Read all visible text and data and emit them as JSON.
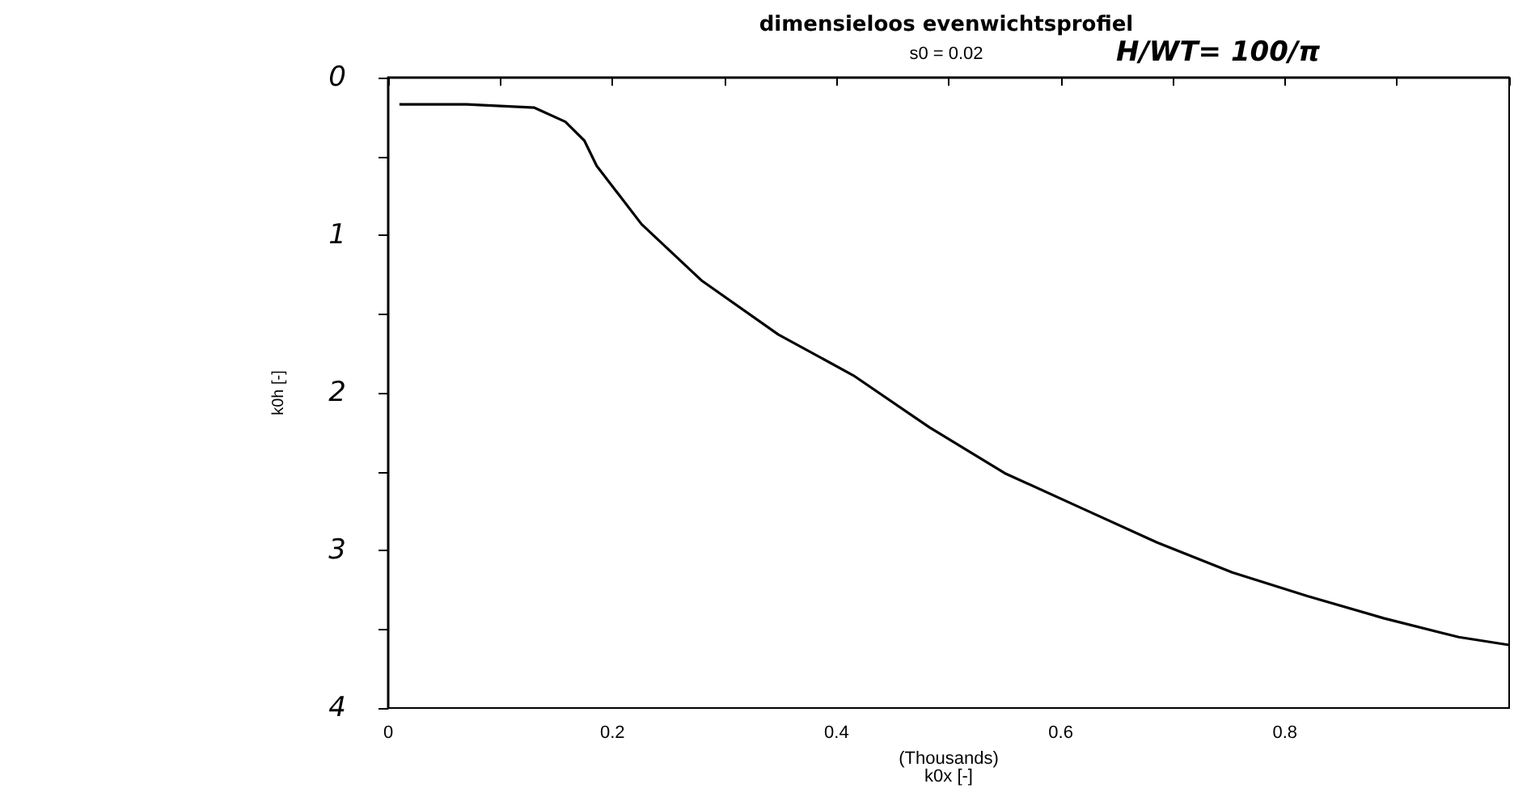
{
  "chart_data": {
    "type": "line",
    "title": "dimensieloos evenwichtsprofiel",
    "subtitle": "s0 = 0.02",
    "annotations": [
      "H/WT= 100/π"
    ],
    "xlabel": "(Thousands)\nk0x [-]",
    "ylabel": "k0h [-]",
    "x": [
      0.01,
      0.07,
      0.13,
      0.158,
      0.175,
      0.186,
      0.226,
      0.28,
      0.348,
      0.415,
      0.483,
      0.55,
      0.618,
      0.686,
      0.753,
      0.82,
      0.888,
      0.955,
      1.0
    ],
    "series": [
      {
        "color": "#000000",
        "values": [
          0.17,
          0.17,
          0.19,
          0.28,
          0.4,
          0.56,
          0.93,
          1.29,
          1.63,
          1.89,
          2.22,
          2.51,
          2.73,
          2.95,
          3.14,
          3.29,
          3.43,
          3.55,
          3.6
        ]
      }
    ],
    "xlim": [
      0,
      1
    ],
    "xticks": [
      0,
      {
        "value": 0.1,
        "label": null
      },
      0.2,
      {
        "value": 0.3,
        "label": null
      },
      0.4,
      {
        "value": 0.5,
        "label": null
      },
      0.6,
      {
        "value": 0.7,
        "label": null
      },
      0.8,
      {
        "value": 0.9,
        "label": null
      },
      {
        "value": 1,
        "label": null
      }
    ],
    "ylim": [
      4,
      0
    ],
    "yticks": [
      0,
      {
        "value": 0.5,
        "label": null
      },
      1,
      {
        "value": 1.5,
        "label": null
      },
      2,
      {
        "value": 2.5,
        "label": null
      },
      3,
      {
        "value": 3.5,
        "label": null
      },
      4
    ],
    "grid": false,
    "marker": "none",
    "line_style": "solid"
  }
}
